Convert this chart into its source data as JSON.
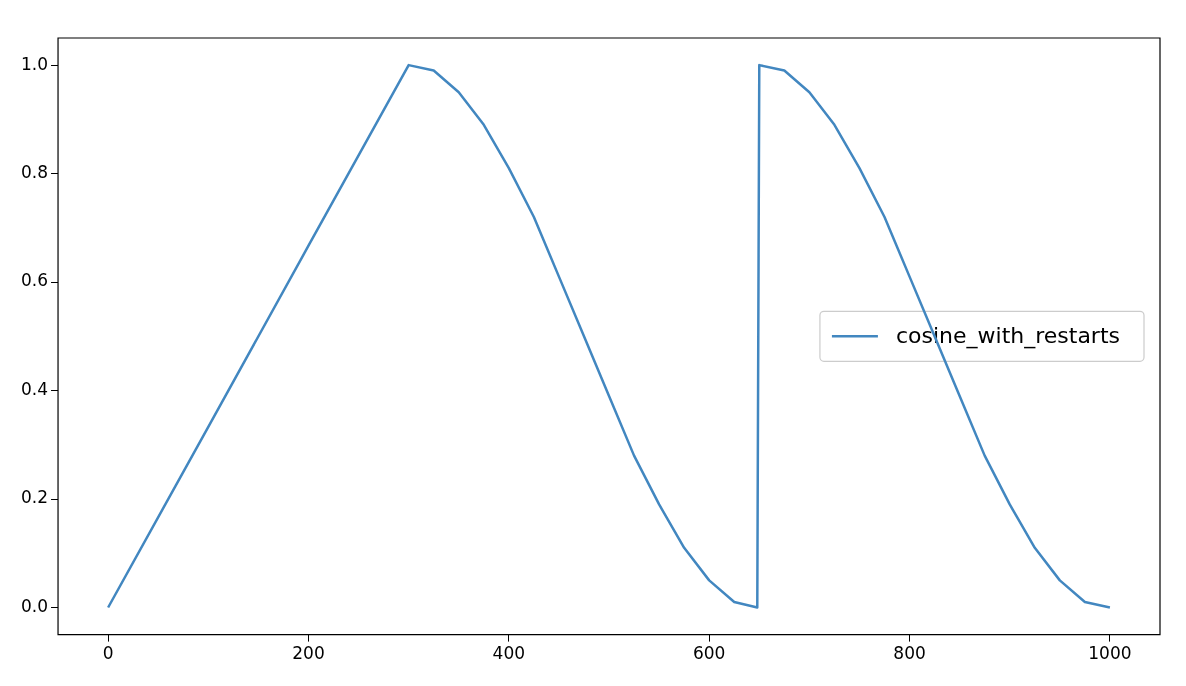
{
  "chart_data": {
    "type": "line",
    "x": [
      0,
      100,
      200,
      300,
      325,
      350,
      375,
      400,
      425,
      450,
      475,
      500,
      525,
      550,
      575,
      600,
      625,
      648,
      650,
      675,
      700,
      725,
      750,
      775,
      800,
      825,
      850,
      875,
      900,
      925,
      950,
      975,
      1000
    ],
    "series": [
      {
        "name": "cosine_with_restarts",
        "color": "#4287c0",
        "values": [
          0,
          0.333,
          0.667,
          1,
          0.99,
          0.95,
          0.89,
          0.81,
          0.72,
          0.61,
          0.5,
          0.39,
          0.28,
          0.19,
          0.11,
          0.05,
          0.01,
          0,
          1,
          0.99,
          0.95,
          0.89,
          0.81,
          0.72,
          0.61,
          0.5,
          0.39,
          0.28,
          0.19,
          0.11,
          0.05,
          0.01,
          0
        ]
      }
    ],
    "xlim": [
      -50,
      1050
    ],
    "xticks": [
      0,
      200,
      400,
      600,
      800,
      1000
    ],
    "ylim": [
      -0.05,
      1.05
    ],
    "yticks": [
      {
        "value": 0,
        "label": "0.0"
      },
      {
        "value": 0.2,
        "label": "0.2"
      },
      {
        "value": 0.4,
        "label": "0.4"
      },
      {
        "value": 0.6,
        "label": "0.6"
      },
      {
        "value": 0.8,
        "label": "0.8"
      },
      {
        "value": 1,
        "label": "1.0"
      }
    ],
    "grid": false,
    "legend": "center right",
    "marker": "none",
    "line_style": "solid"
  }
}
